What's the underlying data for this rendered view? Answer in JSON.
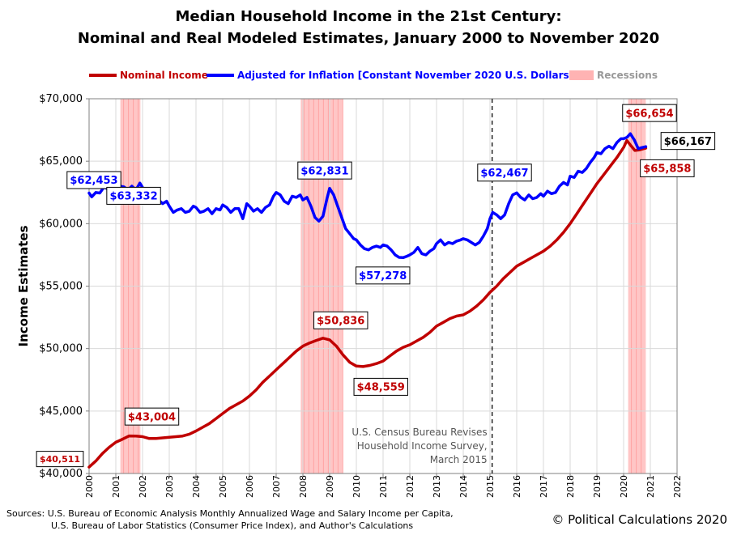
{
  "title_line1": "Median Household Income in the 21st Century:",
  "title_line2": "Nominal and Real Modeled Estimates, January 2000 to November 2020",
  "sources_line1": "Sources: U.S. Bureau of Economic Analysis Monthly Annualized Wage and Salary Income per Capita,",
  "sources_line2": "U.S. Bureau of Labor Statistics (Consumer Price Index), and Author's Calculations",
  "copyright": "© Political Calculations 2020",
  "colors": {
    "nominal": "#c00000",
    "real": "#0000ff",
    "recession": "#ffb3b3",
    "grid": "#d9d9d9"
  },
  "chart_data": {
    "type": "line",
    "title": "Median Household Income in the 21st Century: Nominal and Real Modeled Estimates, January 2000 to November 2020",
    "xlabel": "",
    "ylabel": "Income Estimates",
    "xlim": [
      2000,
      2022
    ],
    "ylim": [
      40000,
      70000
    ],
    "x_ticks": [
      "2000",
      "2001",
      "2002",
      "2003",
      "2004",
      "2005",
      "2006",
      "2007",
      "2008",
      "2009",
      "2010",
      "2011",
      "2012",
      "2013",
      "2014",
      "2015",
      "2016",
      "2017",
      "2018",
      "2019",
      "2020",
      "2021",
      "2022"
    ],
    "y_ticks": [
      {
        "value": 40000,
        "label": "$40,000"
      },
      {
        "value": 45000,
        "label": "$45,000"
      },
      {
        "value": 50000,
        "label": "$50,000"
      },
      {
        "value": 55000,
        "label": "$55,000"
      },
      {
        "value": 60000,
        "label": "$60,000"
      },
      {
        "value": 65000,
        "label": "$65,000"
      },
      {
        "value": 70000,
        "label": "$70,000"
      }
    ],
    "grid": true,
    "legend_position": "top",
    "legend": [
      {
        "label": "Nominal Income",
        "kind": "line",
        "color": "#c00000"
      },
      {
        "label": "Adjusted for Inflation [Constant November 2020 U.S. Dollars]",
        "kind": "line",
        "color": "#0000ff"
      },
      {
        "label": "Recessions",
        "kind": "band",
        "color": "#ffb3b3"
      }
    ],
    "recessions": [
      [
        2001.17,
        2001.92
      ],
      [
        2007.92,
        2009.5
      ],
      [
        2020.17,
        2020.83
      ]
    ],
    "series": [
      {
        "name": "Nominal Income",
        "color": "#c00000",
        "points": [
          [
            2000.0,
            40511
          ],
          [
            2000.25,
            41000
          ],
          [
            2000.5,
            41600
          ],
          [
            2000.75,
            42100
          ],
          [
            2001.0,
            42500
          ],
          [
            2001.25,
            42750
          ],
          [
            2001.5,
            43004
          ],
          [
            2001.75,
            43000
          ],
          [
            2002.0,
            42950
          ],
          [
            2002.25,
            42800
          ],
          [
            2002.5,
            42800
          ],
          [
            2002.75,
            42850
          ],
          [
            2003.0,
            42900
          ],
          [
            2003.25,
            42950
          ],
          [
            2003.5,
            43000
          ],
          [
            2003.75,
            43150
          ],
          [
            2004.0,
            43400
          ],
          [
            2004.25,
            43700
          ],
          [
            2004.5,
            44000
          ],
          [
            2004.75,
            44400
          ],
          [
            2005.0,
            44800
          ],
          [
            2005.25,
            45200
          ],
          [
            2005.5,
            45500
          ],
          [
            2005.75,
            45800
          ],
          [
            2006.0,
            46200
          ],
          [
            2006.25,
            46700
          ],
          [
            2006.5,
            47300
          ],
          [
            2006.75,
            47800
          ],
          [
            2007.0,
            48300
          ],
          [
            2007.25,
            48800
          ],
          [
            2007.5,
            49300
          ],
          [
            2007.75,
            49800
          ],
          [
            2008.0,
            50200
          ],
          [
            2008.25,
            50450
          ],
          [
            2008.5,
            50650
          ],
          [
            2008.75,
            50836
          ],
          [
            2009.0,
            50700
          ],
          [
            2009.25,
            50200
          ],
          [
            2009.5,
            49500
          ],
          [
            2009.75,
            48900
          ],
          [
            2010.0,
            48600
          ],
          [
            2010.25,
            48559
          ],
          [
            2010.5,
            48650
          ],
          [
            2010.75,
            48800
          ],
          [
            2011.0,
            49000
          ],
          [
            2011.25,
            49400
          ],
          [
            2011.5,
            49800
          ],
          [
            2011.75,
            50100
          ],
          [
            2012.0,
            50300
          ],
          [
            2012.25,
            50600
          ],
          [
            2012.5,
            50900
          ],
          [
            2012.75,
            51300
          ],
          [
            2013.0,
            51800
          ],
          [
            2013.25,
            52100
          ],
          [
            2013.5,
            52400
          ],
          [
            2013.75,
            52600
          ],
          [
            2014.0,
            52700
          ],
          [
            2014.25,
            53000
          ],
          [
            2014.5,
            53400
          ],
          [
            2014.75,
            53900
          ],
          [
            2015.0,
            54500
          ],
          [
            2015.25,
            55000
          ],
          [
            2015.5,
            55600
          ],
          [
            2015.75,
            56100
          ],
          [
            2016.0,
            56600
          ],
          [
            2016.25,
            56900
          ],
          [
            2016.5,
            57200
          ],
          [
            2016.75,
            57500
          ],
          [
            2017.0,
            57800
          ],
          [
            2017.25,
            58200
          ],
          [
            2017.5,
            58700
          ],
          [
            2017.75,
            59300
          ],
          [
            2018.0,
            60000
          ],
          [
            2018.25,
            60800
          ],
          [
            2018.5,
            61600
          ],
          [
            2018.75,
            62400
          ],
          [
            2019.0,
            63200
          ],
          [
            2019.25,
            63900
          ],
          [
            2019.5,
            64600
          ],
          [
            2019.75,
            65300
          ],
          [
            2020.0,
            66100
          ],
          [
            2020.12,
            66654
          ],
          [
            2020.25,
            66300
          ],
          [
            2020.42,
            65858
          ],
          [
            2020.58,
            65900
          ],
          [
            2020.75,
            66000
          ],
          [
            2020.83,
            66050
          ]
        ]
      },
      {
        "name": "Adjusted for Inflation [Constant November 2020 U.S. Dollars]",
        "color": "#0000ff",
        "points": [
          [
            2000.0,
            62453
          ],
          [
            2000.1,
            62150
          ],
          [
            2000.25,
            62500
          ],
          [
            2000.4,
            62450
          ],
          [
            2000.55,
            62900
          ],
          [
            2000.7,
            62800
          ],
          [
            2000.85,
            63332
          ],
          [
            2001.0,
            63300
          ],
          [
            2001.15,
            63000
          ],
          [
            2001.3,
            62950
          ],
          [
            2001.45,
            62700
          ],
          [
            2001.6,
            63000
          ],
          [
            2001.75,
            62700
          ],
          [
            2001.9,
            63250
          ],
          [
            2002.0,
            62900
          ],
          [
            2002.15,
            62300
          ],
          [
            2002.3,
            62000
          ],
          [
            2002.45,
            61800
          ],
          [
            2002.6,
            61900
          ],
          [
            2002.75,
            61600
          ],
          [
            2002.9,
            61800
          ],
          [
            2003.0,
            61400
          ],
          [
            2003.15,
            60900
          ],
          [
            2003.3,
            61100
          ],
          [
            2003.45,
            61200
          ],
          [
            2003.6,
            60900
          ],
          [
            2003.75,
            61000
          ],
          [
            2003.9,
            61400
          ],
          [
            2004.0,
            61300
          ],
          [
            2004.15,
            60900
          ],
          [
            2004.3,
            61000
          ],
          [
            2004.45,
            61200
          ],
          [
            2004.6,
            60800
          ],
          [
            2004.75,
            61200
          ],
          [
            2004.9,
            61100
          ],
          [
            2005.0,
            61500
          ],
          [
            2005.15,
            61300
          ],
          [
            2005.3,
            60900
          ],
          [
            2005.45,
            61200
          ],
          [
            2005.6,
            61200
          ],
          [
            2005.75,
            60400
          ],
          [
            2005.9,
            61600
          ],
          [
            2006.0,
            61400
          ],
          [
            2006.15,
            61000
          ],
          [
            2006.3,
            61200
          ],
          [
            2006.45,
            60900
          ],
          [
            2006.6,
            61300
          ],
          [
            2006.75,
            61500
          ],
          [
            2006.9,
            62200
          ],
          [
            2007.0,
            62500
          ],
          [
            2007.15,
            62300
          ],
          [
            2007.3,
            61800
          ],
          [
            2007.45,
            61600
          ],
          [
            2007.6,
            62200
          ],
          [
            2007.75,
            62100
          ],
          [
            2007.9,
            62300
          ],
          [
            2008.0,
            61900
          ],
          [
            2008.15,
            62100
          ],
          [
            2008.3,
            61400
          ],
          [
            2008.45,
            60500
          ],
          [
            2008.6,
            60200
          ],
          [
            2008.75,
            60600
          ],
          [
            2008.9,
            62000
          ],
          [
            2009.0,
            62831
          ],
          [
            2009.15,
            62300
          ],
          [
            2009.3,
            61400
          ],
          [
            2009.45,
            60500
          ],
          [
            2009.6,
            59600
          ],
          [
            2009.75,
            59200
          ],
          [
            2009.9,
            58800
          ],
          [
            2010.0,
            58700
          ],
          [
            2010.15,
            58300
          ],
          [
            2010.3,
            58000
          ],
          [
            2010.45,
            57900
          ],
          [
            2010.6,
            58100
          ],
          [
            2010.75,
            58200
          ],
          [
            2010.9,
            58100
          ],
          [
            2011.0,
            58300
          ],
          [
            2011.15,
            58200
          ],
          [
            2011.3,
            57900
          ],
          [
            2011.45,
            57500
          ],
          [
            2011.6,
            57300
          ],
          [
            2011.75,
            57278
          ],
          [
            2011.9,
            57400
          ],
          [
            2012.0,
            57500
          ],
          [
            2012.15,
            57700
          ],
          [
            2012.3,
            58100
          ],
          [
            2012.45,
            57600
          ],
          [
            2012.6,
            57500
          ],
          [
            2012.75,
            57800
          ],
          [
            2012.9,
            58000
          ],
          [
            2013.0,
            58400
          ],
          [
            2013.15,
            58700
          ],
          [
            2013.3,
            58300
          ],
          [
            2013.45,
            58500
          ],
          [
            2013.6,
            58400
          ],
          [
            2013.75,
            58600
          ],
          [
            2013.9,
            58700
          ],
          [
            2014.0,
            58800
          ],
          [
            2014.15,
            58700
          ],
          [
            2014.3,
            58500
          ],
          [
            2014.45,
            58300
          ],
          [
            2014.6,
            58500
          ],
          [
            2014.75,
            59000
          ],
          [
            2014.9,
            59600
          ],
          [
            2015.0,
            60400
          ],
          [
            2015.1,
            60900
          ],
          [
            2015.25,
            60700
          ],
          [
            2015.4,
            60400
          ],
          [
            2015.55,
            60700
          ],
          [
            2015.7,
            61600
          ],
          [
            2015.85,
            62300
          ],
          [
            2016.0,
            62467
          ],
          [
            2016.15,
            62100
          ],
          [
            2016.3,
            61900
          ],
          [
            2016.45,
            62300
          ],
          [
            2016.6,
            62000
          ],
          [
            2016.75,
            62100
          ],
          [
            2016.9,
            62400
          ],
          [
            2017.0,
            62200
          ],
          [
            2017.15,
            62600
          ],
          [
            2017.3,
            62400
          ],
          [
            2017.45,
            62500
          ],
          [
            2017.6,
            63000
          ],
          [
            2017.75,
            63300
          ],
          [
            2017.9,
            63100
          ],
          [
            2018.0,
            63800
          ],
          [
            2018.15,
            63700
          ],
          [
            2018.3,
            64200
          ],
          [
            2018.45,
            64100
          ],
          [
            2018.6,
            64400
          ],
          [
            2018.75,
            64900
          ],
          [
            2018.9,
            65300
          ],
          [
            2019.0,
            65700
          ],
          [
            2019.15,
            65600
          ],
          [
            2019.3,
            66000
          ],
          [
            2019.45,
            66200
          ],
          [
            2019.6,
            66000
          ],
          [
            2019.75,
            66500
          ],
          [
            2019.9,
            66800
          ],
          [
            2020.0,
            66800
          ],
          [
            2020.12,
            66900
          ],
          [
            2020.25,
            67200
          ],
          [
            2020.4,
            66700
          ],
          [
            2020.55,
            66000
          ],
          [
            2020.7,
            66100
          ],
          [
            2020.83,
            66167
          ]
        ]
      }
    ],
    "annotations": [
      {
        "text": "$40,511",
        "series": "nominal",
        "x": 2000.0,
        "y": 40511,
        "style": "red"
      },
      {
        "text": "$43,004",
        "series": "nominal",
        "x": 2001.5,
        "y": 43004,
        "style": "red"
      },
      {
        "text": "$50,836",
        "series": "nominal",
        "x": 2008.75,
        "y": 50836,
        "style": "red"
      },
      {
        "text": "$48,559",
        "series": "nominal",
        "x": 2010.25,
        "y": 48559,
        "style": "red"
      },
      {
        "text": "$66,654",
        "series": "nominal",
        "x": 2020.12,
        "y": 66654,
        "style": "red"
      },
      {
        "text": "$65,858",
        "series": "nominal",
        "x": 2020.42,
        "y": 65858,
        "style": "red"
      },
      {
        "text": "$62,453",
        "series": "real",
        "x": 2000.0,
        "y": 62453,
        "style": "blue"
      },
      {
        "text": "$63,332",
        "series": "real",
        "x": 2000.85,
        "y": 63332,
        "style": "blue"
      },
      {
        "text": "$62,831",
        "series": "real",
        "x": 2009.0,
        "y": 62831,
        "style": "blue"
      },
      {
        "text": "$57,278",
        "series": "real",
        "x": 2011.75,
        "y": 57278,
        "style": "blue"
      },
      {
        "text": "$62,467",
        "series": "real",
        "x": 2016.0,
        "y": 62467,
        "style": "blue"
      },
      {
        "text": "$66,167",
        "series": "real",
        "x": 2020.83,
        "y": 66167,
        "style": "black"
      }
    ],
    "reference_line": {
      "x": 2015.08,
      "style": "dashed",
      "label_lines": [
        "U.S. Census Bureau Revises",
        "Household Income Survey,",
        "March 2015"
      ]
    }
  }
}
